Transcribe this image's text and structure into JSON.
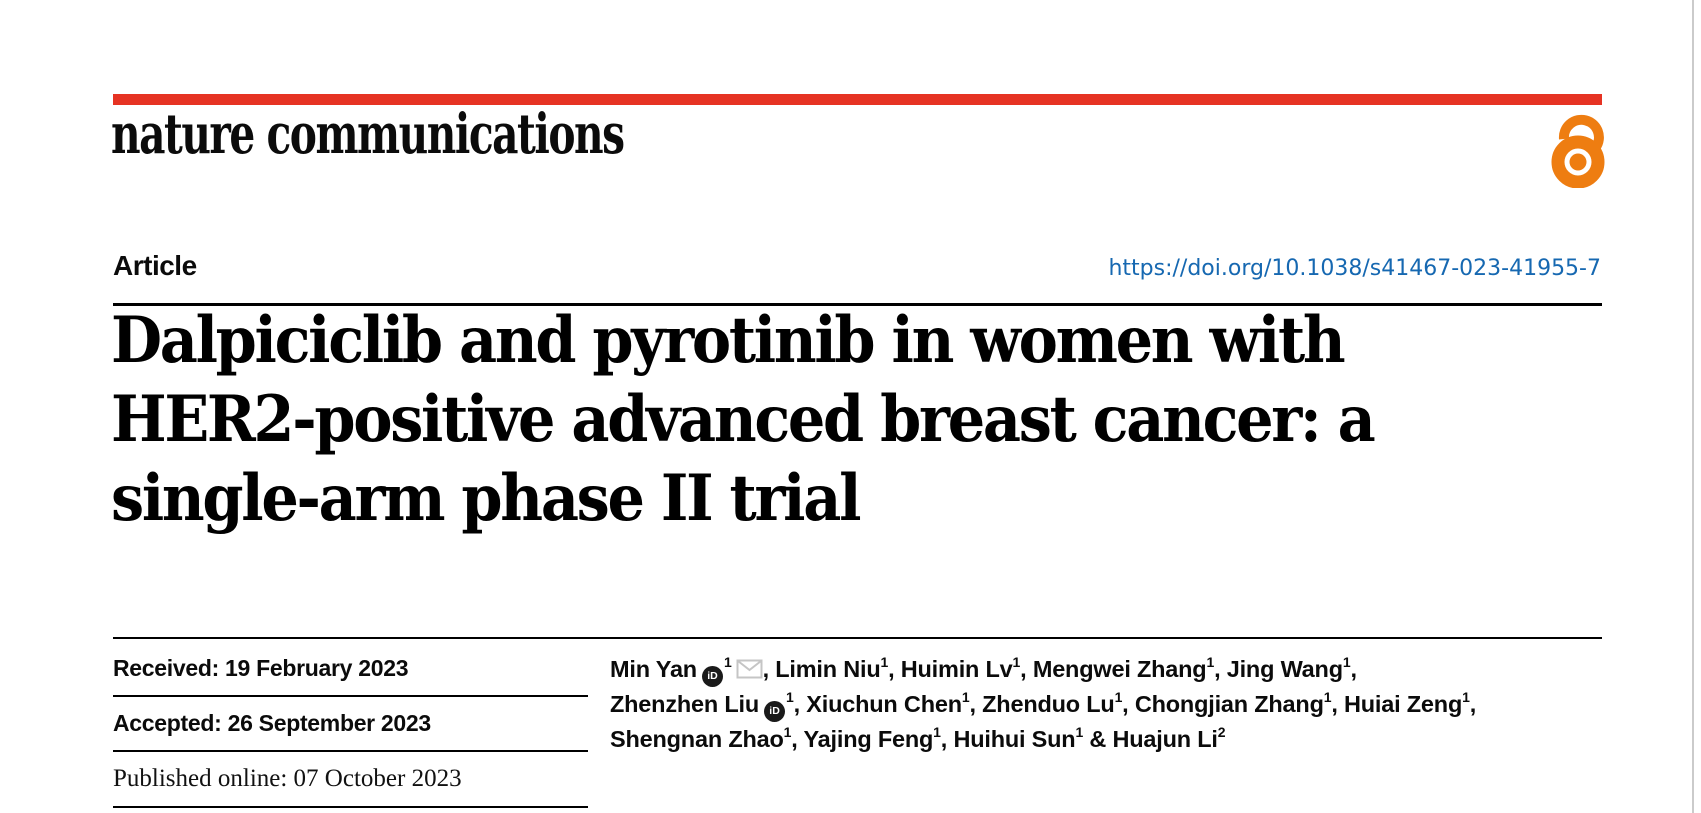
{
  "masthead": {
    "journal": "nature communications"
  },
  "article": {
    "label": "Article",
    "doi": "https://doi.org/10.1038/s41467-023-41955-7",
    "title_lines": [
      "Dalpiciclib and pyrotinib in women with",
      "HER2-positive advanced breast cancer: a",
      "single-arm phase II trial"
    ]
  },
  "dates": [
    {
      "text": "Received: 19 February 2023"
    },
    {
      "text": "Accepted: 26 September 2023"
    },
    {
      "text": "Published online: 07 October 2023"
    }
  ],
  "authors": {
    "lines": [
      [
        {
          "name": "Min Yan",
          "orcid": true,
          "sup": "1",
          "email": true,
          "tail": ", "
        },
        {
          "name": "Limin Niu",
          "sup": "1",
          "tail": ", "
        },
        {
          "name": "Huimin Lv",
          "sup": "1",
          "tail": ", "
        },
        {
          "name": "Mengwei Zhang",
          "sup": "1",
          "tail": ", "
        },
        {
          "name": "Jing Wang",
          "sup": "1",
          "tail": ","
        }
      ],
      [
        {
          "name": "Zhenzhen Liu",
          "orcid": true,
          "sup": "1",
          "tail": ", "
        },
        {
          "name": "Xiuchun Chen",
          "sup": "1",
          "tail": ", "
        },
        {
          "name": "Zhenduo Lu",
          "sup": "1",
          "tail": ", "
        },
        {
          "name": "Chongjian Zhang",
          "sup": "1",
          "tail": ", "
        },
        {
          "name": "Huiai Zeng",
          "sup": "1",
          "tail": ","
        }
      ],
      [
        {
          "name": "Shengnan Zhao",
          "sup": "1",
          "tail": ", "
        },
        {
          "name": "Yajing Feng",
          "sup": "1",
          "tail": ", "
        },
        {
          "name": "Huihui Sun",
          "sup": "1",
          "tail": " & "
        },
        {
          "name": "Huajun Li",
          "sup": "2",
          "tail": ""
        }
      ]
    ]
  },
  "icons": {
    "orcid_glyph": "iD"
  },
  "colors": {
    "accent_red": "#E63323",
    "oa_orange": "#EE7D11",
    "doi_blue": "#1668B1",
    "rule_black": "#000000",
    "edge_gray": "#CBCBCB",
    "envelope_gray": "#C5C5C5"
  }
}
